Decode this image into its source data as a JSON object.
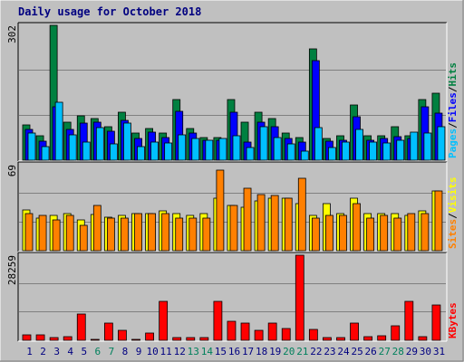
{
  "chart_data": {
    "type": "bar",
    "title": "Daily usage for October 2018",
    "days": [
      "1",
      "2",
      "3",
      "4",
      "5",
      "6",
      "7",
      "8",
      "9",
      "10",
      "11",
      "12",
      "13",
      "14",
      "15",
      "16",
      "17",
      "18",
      "19",
      "20",
      "21",
      "22",
      "23",
      "24",
      "25",
      "26",
      "27",
      "28",
      "29",
      "30",
      "31"
    ],
    "weekend_days": [
      6,
      7,
      13,
      14,
      20,
      21,
      27,
      28
    ],
    "panels": [
      {
        "name": "hits-files-pages",
        "scale_label": "302",
        "ymax": 302,
        "series": [
          {
            "name": "Hits",
            "color": "#008040",
            "values": [
              80,
              55,
              302,
              86,
              100,
              94,
              75,
              108,
              60,
              70,
              60,
              135,
              70,
              50,
              50,
              135,
              86,
              108,
              94,
              60,
              50,
              250,
              48,
              55,
              123,
              54,
              55,
              76,
              55,
              135,
              150
            ]
          },
          {
            "name": "Files",
            "color": "#0000ff",
            "values": [
              68,
              42,
              120,
              68,
              84,
              86,
              64,
              90,
              48,
              62,
              50,
              110,
              60,
              45,
              44,
              108,
              40,
              86,
              76,
              48,
              40,
              222,
              42,
              44,
              98,
              44,
              48,
              52,
              48,
              120,
              105
            ]
          },
          {
            "name": "Pages",
            "color": "#00c0ff",
            "values": [
              60,
              30,
              130,
              56,
              40,
              72,
              36,
              83,
              30,
              40,
              38,
              56,
              48,
              45,
              48,
              55,
              28,
              76,
              50,
              36,
              20,
              72,
              28,
              40,
              68,
              40,
              38,
              45,
              62,
              60,
              75
            ]
          }
        ],
        "legend": [
          "Pages",
          "/",
          "Files",
          "/",
          "Hits"
        ],
        "legend_colors": [
          "#00c0ff",
          "#000000",
          "#0000ff",
          "#000000",
          "#008040"
        ]
      },
      {
        "name": "visits-sites",
        "scale_label": "69",
        "ymax": 69,
        "series": [
          {
            "name": "Visits",
            "color": "#ffff00",
            "values": [
              33,
              26,
              28,
              30,
              25,
              29,
              27,
              28,
              30,
              30,
              32,
              30,
              28,
              30,
              42,
              36,
              35,
              40,
              42,
              42,
              38,
              28,
              38,
              30,
              42,
              30,
              30,
              30,
              28,
              32,
              48
            ]
          },
          {
            "name": "Sites",
            "color": "#ff8000",
            "values": [
              30,
              28,
              25,
              28,
              20,
              36,
              26,
              26,
              30,
              30,
              30,
              26,
              26,
              26,
              65,
              36,
              50,
              45,
              44,
              42,
              58,
              26,
              28,
              28,
              38,
              26,
              28,
              26,
              30,
              30,
              48
            ]
          }
        ],
        "legend": [
          "Sites",
          "/",
          "Visits"
        ],
        "legend_colors": [
          "#ff8000",
          "#000000",
          "#ffff00"
        ]
      },
      {
        "name": "kbytes",
        "scale_label": "28259",
        "ymax": 28259,
        "series": [
          {
            "name": "KBytes",
            "color": "#ff0000",
            "values": [
              1800,
              1800,
              800,
              1200,
              8800,
              400,
              5600,
              3200,
              400,
              2400,
              12800,
              800,
              800,
              800,
              12800,
              6400,
              5600,
              3200,
              5600,
              4000,
              28259,
              3600,
              800,
              800,
              5600,
              1200,
              1500,
              4800,
              12800,
              1200,
              11600
            ]
          }
        ],
        "legend": [
          "KBytes"
        ],
        "legend_colors": [
          "#ff0000"
        ]
      }
    ],
    "axis_label_color": "#000080",
    "weekend_label_color": "#00805c"
  }
}
